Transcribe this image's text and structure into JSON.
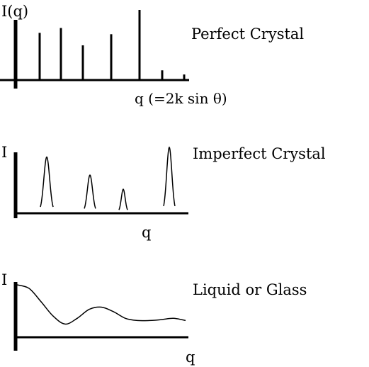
{
  "chart_data": [
    {
      "type": "bar",
      "title": "Perfect Crystal",
      "ylabel": "I(q)",
      "xlabel": "q (=2k sin θ)",
      "x": [
        1,
        2,
        3,
        4,
        5,
        6,
        7
      ],
      "values": [
        67,
        74,
        49,
        65,
        100,
        13,
        7
      ],
      "ylim": [
        0,
        100
      ]
    },
    {
      "type": "line",
      "title": "Imperfect Crystal",
      "ylabel": "I",
      "xlabel": "q",
      "peaks": [
        {
          "center": 1,
          "height": 85
        },
        {
          "center": 2,
          "height": 57
        },
        {
          "center": 3,
          "height": 35
        },
        {
          "center": 4,
          "height": 100
        }
      ],
      "ylim": [
        0,
        100
      ]
    },
    {
      "type": "line",
      "title": "Liquid or Glass",
      "ylabel": "I",
      "xlabel": "q",
      "x": [
        0,
        0.5,
        1,
        1.5,
        2,
        2.5,
        3,
        3.5,
        4,
        4.5,
        5,
        5.5,
        6,
        6.5,
        7
      ],
      "values": [
        100,
        92,
        62,
        30,
        12,
        25,
        45,
        50,
        40,
        25,
        20,
        20,
        22,
        25,
        20
      ],
      "ylim": [
        0,
        100
      ]
    }
  ]
}
